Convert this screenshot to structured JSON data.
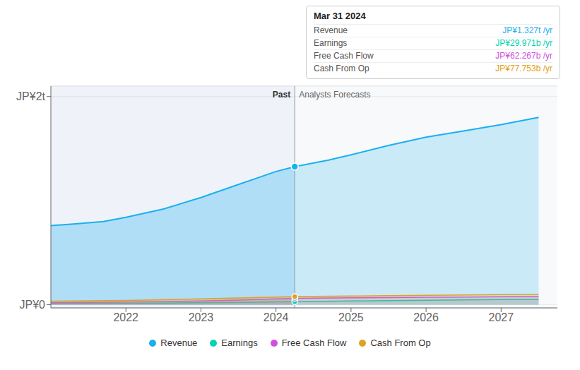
{
  "chart_data": {
    "type": "area",
    "xlim": [
      2021.0,
      2027.75
    ],
    "xticks": [
      2022,
      2023,
      2024,
      2025,
      2026,
      2027
    ],
    "ylim": [
      -30,
      2100
    ],
    "yticks": [
      {
        "value": 0,
        "label": "JP¥0"
      },
      {
        "value": 2000,
        "label": "JP¥2t"
      }
    ],
    "grid": true,
    "legend": "bottom",
    "series": [
      {
        "name": "Revenue",
        "color": "#1ab0f0",
        "x": [
          2021.0,
          2021.3,
          2021.7,
          2022.0,
          2022.5,
          2023.0,
          2023.5,
          2024.0,
          2024.25,
          2024.25,
          2024.7,
          2025.0,
          2025.5,
          2026.0,
          2026.5,
          2027.0,
          2027.5
        ],
        "values": [
          760,
          775,
          800,
          840,
          920,
          1030,
          1155,
          1280,
          1327,
          1327,
          1390,
          1440,
          1530,
          1610,
          1670,
          1730,
          1800
        ]
      },
      {
        "name": "Earnings",
        "color": "#00d4b0",
        "x": [
          2021.0,
          2021.5,
          2022.0,
          2022.5,
          2023.0,
          2023.5,
          2024.0,
          2024.25,
          2024.25,
          2025.0,
          2025.5,
          2026.0,
          2026.5,
          2027.0,
          2027.5
        ],
        "values": [
          10,
          12,
          14,
          16,
          19,
          23,
          27,
          29.971,
          29.971,
          36,
          40,
          43,
          46,
          49,
          52
        ]
      },
      {
        "name": "Free Cash Flow",
        "color": "#d050e0",
        "x": [
          2021.0,
          2021.5,
          2022.0,
          2022.5,
          2023.0,
          2023.5,
          2024.0,
          2024.25,
          2024.25,
          2025.0,
          2025.5,
          2026.0,
          2026.5,
          2027.0,
          2027.5
        ],
        "values": [
          20,
          22,
          26,
          30,
          36,
          45,
          56,
          62.267,
          62.267,
          66,
          69,
          72,
          74,
          76,
          78
        ]
      },
      {
        "name": "Cash From Op",
        "color": "#e0a020",
        "x": [
          2021.0,
          2021.5,
          2022.0,
          2022.5,
          2023.0,
          2023.5,
          2024.0,
          2024.25,
          2024.25,
          2025.0,
          2025.5,
          2026.0,
          2026.5,
          2027.0,
          2027.5
        ],
        "values": [
          35,
          38,
          42,
          48,
          56,
          65,
          73,
          77.753,
          77.753,
          83,
          87,
          91,
          94,
          97,
          100
        ]
      }
    ],
    "annotations": [
      {
        "x": 2024.25,
        "before": "Past",
        "after": "Analysts Forecasts"
      }
    ],
    "tooltip": {
      "title": "Mar 31 2024",
      "rows": [
        {
          "name": "Revenue",
          "value": 1327,
          "label": "JP¥1.327t /yr",
          "color": "#1ab0f0"
        },
        {
          "name": "Earnings",
          "value": 29.971,
          "label": "JP¥29.971b /yr",
          "color": "#00d4b0"
        },
        {
          "name": "Free Cash Flow",
          "value": 62.267,
          "label": "JP¥62.267b /yr",
          "color": "#d050e0"
        },
        {
          "name": "Cash From Op",
          "value": 77.753,
          "label": "JP¥77.753b /yr",
          "color": "#e0a020"
        }
      ]
    }
  }
}
